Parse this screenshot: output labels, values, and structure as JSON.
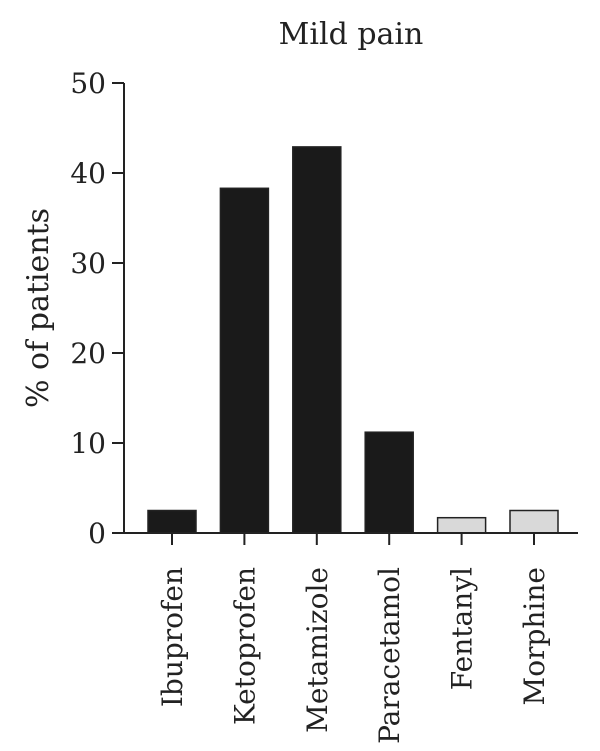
{
  "chart_data": {
    "type": "bar",
    "title": "Mild pain",
    "xlabel": "",
    "ylabel": "% of patients",
    "categories": [
      "Ibuprofen",
      "Ketoprofen",
      "Metamizole",
      "Paracetamol",
      "Fentanyl",
      "Morphine"
    ],
    "values": [
      2.5,
      38.3,
      42.9,
      11.2,
      1.7,
      2.5
    ],
    "bar_colors": [
      "#1a1a1a",
      "#1a1a1a",
      "#1a1a1a",
      "#1a1a1a",
      "#d9d9d9",
      "#d9d9d9"
    ],
    "ylim": [
      0,
      50
    ],
    "yticks": [
      0,
      10,
      20,
      30,
      40,
      50
    ],
    "grid": false,
    "legend": "none"
  }
}
